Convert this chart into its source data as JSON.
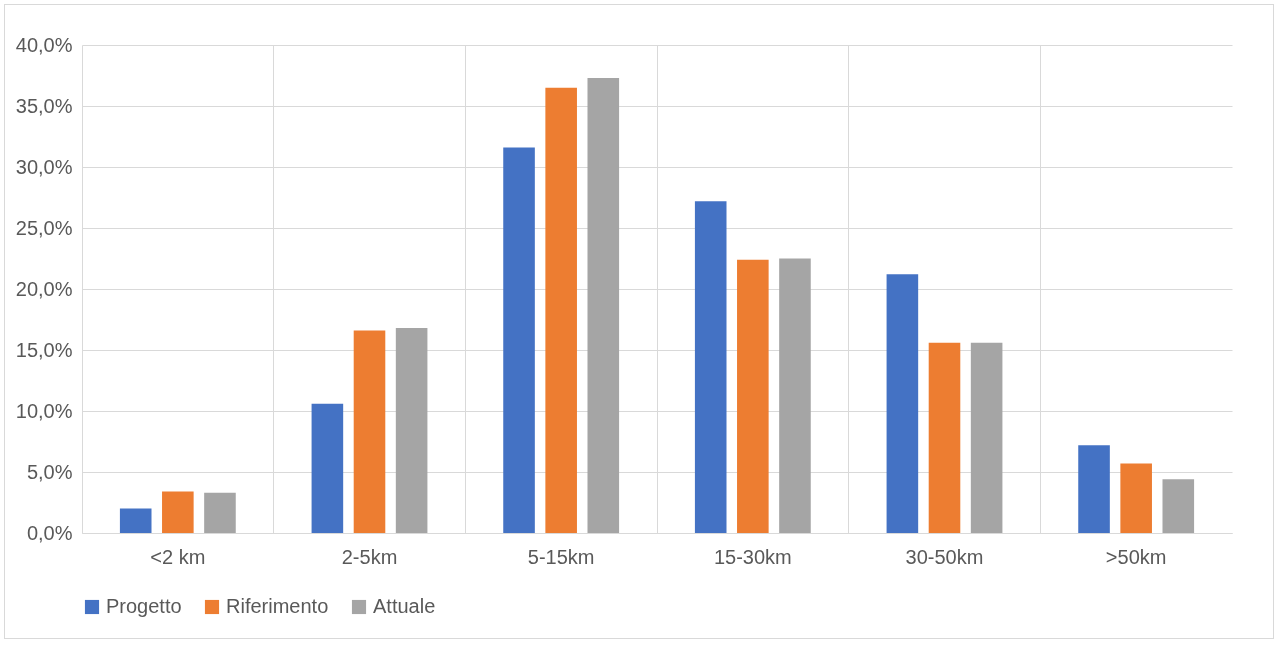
{
  "chart_data": {
    "type": "bar",
    "categories": [
      "<2 km",
      "2-5km",
      "5-15km",
      "15-30km",
      "30-50km",
      ">50km"
    ],
    "series": [
      {
        "name": "Progetto",
        "color": "#4472c4",
        "values": [
          2.0,
          10.6,
          31.6,
          27.2,
          21.2,
          7.2
        ]
      },
      {
        "name": "Riferimento",
        "color": "#ed7d31",
        "values": [
          3.4,
          16.6,
          36.5,
          22.4,
          15.6,
          5.7
        ]
      },
      {
        "name": "Attuale",
        "color": "#a5a5a5",
        "values": [
          3.3,
          16.8,
          37.3,
          22.5,
          15.6,
          4.4
        ]
      }
    ],
    "ylim": [
      0,
      40
    ],
    "yticks": [
      {
        "value": 0,
        "label": "0,0%"
      },
      {
        "value": 5,
        "label": "5,0%"
      },
      {
        "value": 10,
        "label": "10,0%"
      },
      {
        "value": 15,
        "label": "15,0%"
      },
      {
        "value": 20,
        "label": "20,0%"
      },
      {
        "value": 25,
        "label": "25,0%"
      },
      {
        "value": 30,
        "label": "30,0%"
      },
      {
        "value": 35,
        "label": "35,0%"
      },
      {
        "value": 40,
        "label": "40,0%"
      }
    ],
    "grid": true,
    "legend": "bottom"
  }
}
